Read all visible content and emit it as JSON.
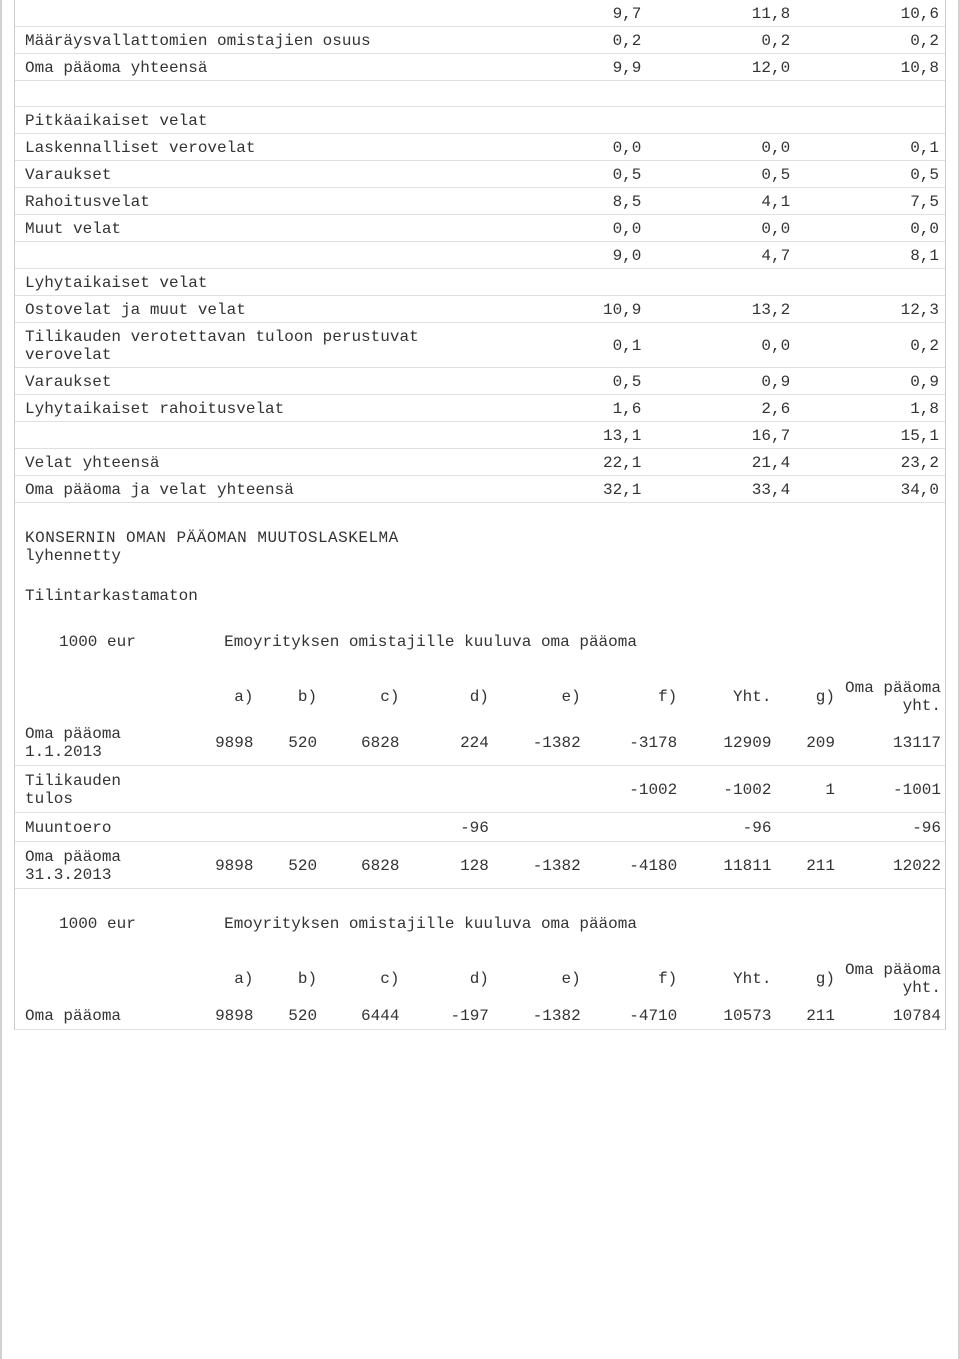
{
  "balance": {
    "columns": 3,
    "rows": [
      {
        "label": "",
        "vals": [
          "9,7",
          "11,8",
          "10,6"
        ]
      },
      {
        "label": "Määräysvallattomien omistajien osuus",
        "vals": [
          "0,2",
          "0,2",
          "0,2"
        ]
      },
      {
        "label": "Oma pääoma yhteensä",
        "vals": [
          "9,9",
          "12,0",
          "10,8"
        ]
      },
      {
        "blank": true
      },
      {
        "label": "Pitkäaikaiset velat",
        "vals": [
          "",
          "",
          ""
        ]
      },
      {
        "label": "Laskennalliset verovelat",
        "vals": [
          "0,0",
          "0,0",
          "0,1"
        ]
      },
      {
        "label": "Varaukset",
        "vals": [
          "0,5",
          "0,5",
          "0,5"
        ]
      },
      {
        "label": "Rahoitusvelat",
        "vals": [
          "8,5",
          "4,1",
          "7,5"
        ]
      },
      {
        "label": "Muut velat",
        "vals": [
          "0,0",
          "0,0",
          "0,0"
        ]
      },
      {
        "label": "",
        "vals": [
          "9,0",
          "4,7",
          "8,1"
        ]
      },
      {
        "label": "Lyhytaikaiset velat",
        "vals": [
          "",
          "",
          ""
        ]
      },
      {
        "label": "Ostovelat ja muut velat",
        "vals": [
          "10,9",
          "13,2",
          "12,3"
        ]
      },
      {
        "label": "Tilikauden verotettavan tuloon perustuvat verovelat",
        "vals": [
          "0,1",
          "0,0",
          "0,2"
        ]
      },
      {
        "label": "Varaukset",
        "vals": [
          "0,5",
          "0,9",
          "0,9"
        ]
      },
      {
        "label": "Lyhytaikaiset rahoitusvelat",
        "vals": [
          "1,6",
          "2,6",
          "1,8"
        ]
      },
      {
        "label": "",
        "vals": [
          "13,1",
          "16,7",
          "15,1"
        ]
      },
      {
        "label": "Velat yhteensä",
        "vals": [
          "22,1",
          "21,4",
          "23,2"
        ]
      },
      {
        "label": "Oma pääoma ja velat yhteensä",
        "vals": [
          "32,1",
          "33,4",
          "34,0"
        ]
      }
    ]
  },
  "equity_section": {
    "title": "KONSERNIN OMAN PÄÄOMAN MUUTOSLASKELMA",
    "subtitle": "lyhennetty",
    "audit": "Tilintarkastamaton",
    "unit_label": "1000 eur",
    "group_header": "Emoyrityksen omistajille kuuluva oma pääoma",
    "col_headers": [
      "a)",
      "b)",
      "c)",
      "d)",
      "e)",
      "f)",
      "Yht.",
      "g)",
      "Oma pääoma yht."
    ]
  },
  "equity_table_1": {
    "rows": [
      {
        "label": "Oma pääoma 1.1.2013",
        "vals": [
          "9898",
          "520",
          "6828",
          "224",
          "-1382",
          "-3178",
          "12909",
          "209",
          "13117"
        ]
      },
      {
        "label": "Tilikauden tulos",
        "vals": [
          "",
          "",
          "",
          "",
          "",
          "-1002",
          "-1002",
          "1",
          "-1001"
        ]
      },
      {
        "label": "Muuntoero",
        "vals": [
          "",
          "",
          "",
          "-96",
          "",
          "",
          "-96",
          "",
          "-96"
        ]
      },
      {
        "label": "Oma pääoma 31.3.2013",
        "vals": [
          "9898",
          "520",
          "6828",
          "128",
          "-1382",
          "-4180",
          "11811",
          "211",
          "12022"
        ]
      }
    ]
  },
  "equity_table_2": {
    "rows": [
      {
        "label": "Oma pääoma",
        "vals": [
          "9898",
          "520",
          "6444",
          "-197",
          "-1382",
          "-4710",
          "10573",
          "211",
          "10784"
        ]
      }
    ]
  }
}
